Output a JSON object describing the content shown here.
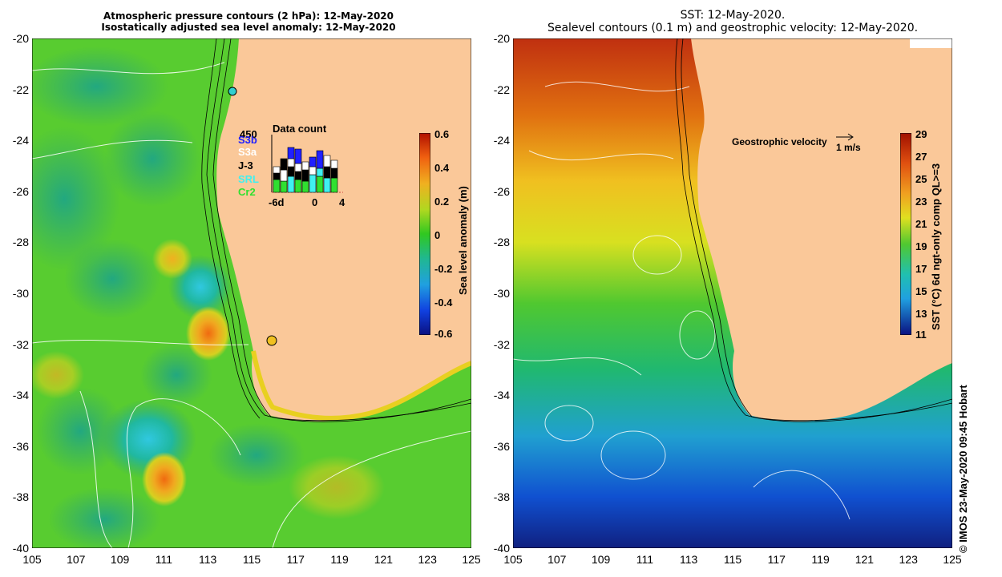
{
  "left_panel": {
    "title_line1": "Atmospheric pressure contours (2 hPa): 12-May-2020",
    "title_line2": "Isostatically adjusted sea level anomaly: 12-May-2020",
    "colorbar": {
      "title": "Sea level anomaly (m)",
      "ticks": [
        "0.6",
        "0.4",
        "0.2",
        "0",
        "-0.2",
        "-0.4",
        "-0.6"
      ]
    },
    "data_count": {
      "title": "Data count",
      "max_label": "450",
      "satellites": [
        {
          "name": "S3b",
          "color": "#2020ff"
        },
        {
          "name": "S3a",
          "color": "#ffffff"
        },
        {
          "name": "J-3",
          "color": "#000000"
        },
        {
          "name": "SRL",
          "color": "#40f0f0"
        },
        {
          "name": "Cr2",
          "color": "#30e030"
        }
      ],
      "x_labels": [
        "-6d",
        "0",
        "4"
      ]
    }
  },
  "right_panel": {
    "title_line1": "SST: 12-May-2020.",
    "title_line2": "Sealevel contours (0.1 m) and geostrophic velocity: 12-May-2020.",
    "velocity_legend": {
      "label": "Geostrophic velocity",
      "scale": "1 m/s"
    },
    "colorbar": {
      "title": "SST (°C) 6d ngt-only comp QL>=3",
      "ticks": [
        "29",
        "27",
        "25",
        "23",
        "21",
        "19",
        "17",
        "15",
        "13",
        "11"
      ]
    }
  },
  "axes": {
    "y_ticks": [
      "-20",
      "-22",
      "-24",
      "-26",
      "-28",
      "-30",
      "-32",
      "-34",
      "-36",
      "-38",
      "-40"
    ],
    "x_ticks": [
      "105",
      "107",
      "109",
      "111",
      "113",
      "115",
      "117",
      "119",
      "121",
      "123",
      "125"
    ]
  },
  "credit": "© IMOS 23-May-2020 09:45 Hobart",
  "colors": {
    "land": "#fac899",
    "sla_green": "#4ccc30",
    "sst_warm": "#cc4010",
    "sst_cold": "#1040c0"
  }
}
